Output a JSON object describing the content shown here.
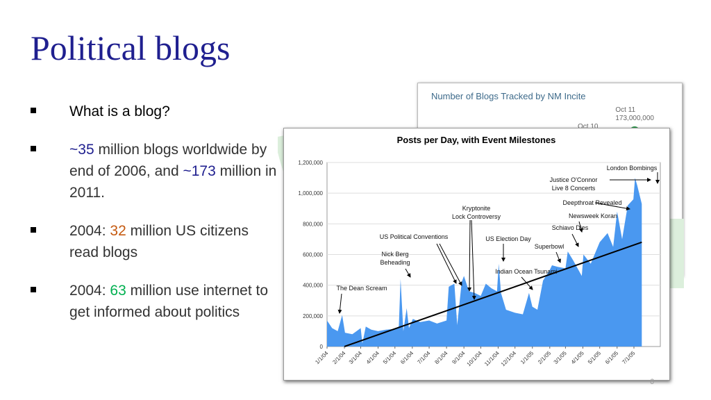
{
  "slide": {
    "title": "Political blogs",
    "page_number": "6",
    "bullets": [
      {
        "parts": [
          {
            "text": "What is a blog?",
            "style": "bk"
          }
        ]
      },
      {
        "parts": [
          {
            "text": " ~35",
            "style": "dk"
          },
          {
            "text": " million blogs worldwide by end of 2006, and ",
            "style": ""
          },
          {
            "text": "~173",
            "style": "dk"
          },
          {
            "text": " million in 2011.",
            "style": ""
          }
        ]
      },
      {
        "parts": [
          {
            "text": "2004: ",
            "style": ""
          },
          {
            "text": "32",
            "style": "or"
          },
          {
            "text": " million US citizens read blogs",
            "style": ""
          }
        ]
      },
      {
        "parts": [
          {
            "text": "2004: ",
            "style": ""
          },
          {
            "text": "63",
            "style": "gr"
          },
          {
            "text": " million use internet to get informed about politics",
            "style": ""
          }
        ]
      }
    ]
  },
  "background_chart": {
    "title": "Number of Blogs Tracked by NM Incite",
    "label_oct11": "Oct 11",
    "value_oct11": "173,000,000",
    "label_oct10": "Oct 10",
    "link_fragment": "te",
    "color_dot": "#2e9a4e"
  },
  "chart_data": {
    "type": "area",
    "title": "Posts per Day, with Event Milestones",
    "xlabel": "",
    "ylabel": "",
    "ylim": [
      0,
      1200000
    ],
    "yticks": [
      "0",
      "200,000",
      "400,000",
      "600,000",
      "800,000",
      "1,000,000",
      "1,200,000"
    ],
    "ytick_values": [
      0,
      200000,
      400000,
      600000,
      800000,
      1000000,
      1200000
    ],
    "xticks": [
      "1/1/04",
      "2/1/04",
      "3/1/04",
      "4/1/04",
      "5/1/04",
      "6/1/04",
      "7/1/04",
      "8/1/04",
      "9/1/04",
      "10/1/04",
      "11/1/04",
      "12/1/04",
      "1/1/05",
      "2/1/05",
      "3/1/05",
      "4/1/05",
      "5/1/05",
      "6/1/05",
      "7/1/05"
    ],
    "grid": "horizontal",
    "fill_color": "#4a98f0",
    "series": [
      {
        "x": [
          "2004-01-01",
          "2004-01-10",
          "2004-01-20",
          "2004-01-28",
          "2004-02-02",
          "2004-02-15",
          "2004-03-01",
          "2004-03-04",
          "2004-03-10",
          "2004-03-20",
          "2004-04-01",
          "2004-04-15",
          "2004-05-01",
          "2004-05-08",
          "2004-05-11",
          "2004-05-16",
          "2004-05-22",
          "2004-05-26",
          "2004-06-02",
          "2004-06-15",
          "2004-07-01",
          "2004-07-15",
          "2004-08-01",
          "2004-08-05",
          "2004-08-15",
          "2004-08-20",
          "2004-08-28",
          "2004-09-01",
          "2004-09-10",
          "2004-09-20",
          "2004-10-01",
          "2004-10-10",
          "2004-10-20",
          "2004-10-30",
          "2004-11-02",
          "2004-11-06",
          "2004-11-15",
          "2004-12-01",
          "2004-12-15",
          "2004-12-26",
          "2005-01-01",
          "2005-01-10",
          "2005-01-20",
          "2005-02-01",
          "2005-02-05",
          "2005-02-15",
          "2005-03-01",
          "2005-03-05",
          "2005-03-15",
          "2005-03-30",
          "2005-04-02",
          "2005-04-15",
          "2005-05-01",
          "2005-05-15",
          "2005-05-25",
          "2005-06-01",
          "2005-06-10",
          "2005-06-20",
          "2005-06-30",
          "2005-07-03",
          "2005-07-07",
          "2005-07-15"
        ],
        "y": [
          170000,
          120000,
          100000,
          205000,
          90000,
          80000,
          120000,
          20000,
          130000,
          110000,
          100000,
          110000,
          115000,
          130000,
          440000,
          100000,
          250000,
          120000,
          180000,
          160000,
          170000,
          150000,
          170000,
          390000,
          410000,
          140000,
          420000,
          460000,
          360000,
          350000,
          330000,
          410000,
          380000,
          360000,
          540000,
          350000,
          240000,
          220000,
          210000,
          350000,
          260000,
          240000,
          430000,
          500000,
          530000,
          520000,
          510000,
          620000,
          560000,
          460000,
          600000,
          540000,
          680000,
          740000,
          650000,
          880000,
          700000,
          920000,
          960000,
          1100000,
          1050000,
          930000
        ]
      }
    ],
    "trend_line": {
      "x": [
        "2004-02-01",
        "2005-07-15"
      ],
      "y": [
        0,
        680000
      ],
      "color": "#000000"
    },
    "annotations": [
      {
        "lines": [
          "The Dean Scream"
        ]
      },
      {
        "lines": [
          "Nick Berg",
          "Beheading"
        ]
      },
      {
        "lines": [
          "US Political Conventions"
        ]
      },
      {
        "lines": [
          "Kryptonite",
          "Lock Controversy"
        ]
      },
      {
        "lines": [
          "US Election Day"
        ]
      },
      {
        "lines": [
          "Indian Ocean Tsunami"
        ]
      },
      {
        "lines": [
          "Superbowl"
        ]
      },
      {
        "lines": [
          "Schiavo Dies"
        ]
      },
      {
        "lines": [
          "Newsweek Koran"
        ]
      },
      {
        "lines": [
          "Deepthroat Revealed"
        ]
      },
      {
        "lines": [
          "Justice O'Connor",
          "Live 8 Concerts"
        ]
      },
      {
        "lines": [
          "London Bombings"
        ]
      }
    ]
  }
}
